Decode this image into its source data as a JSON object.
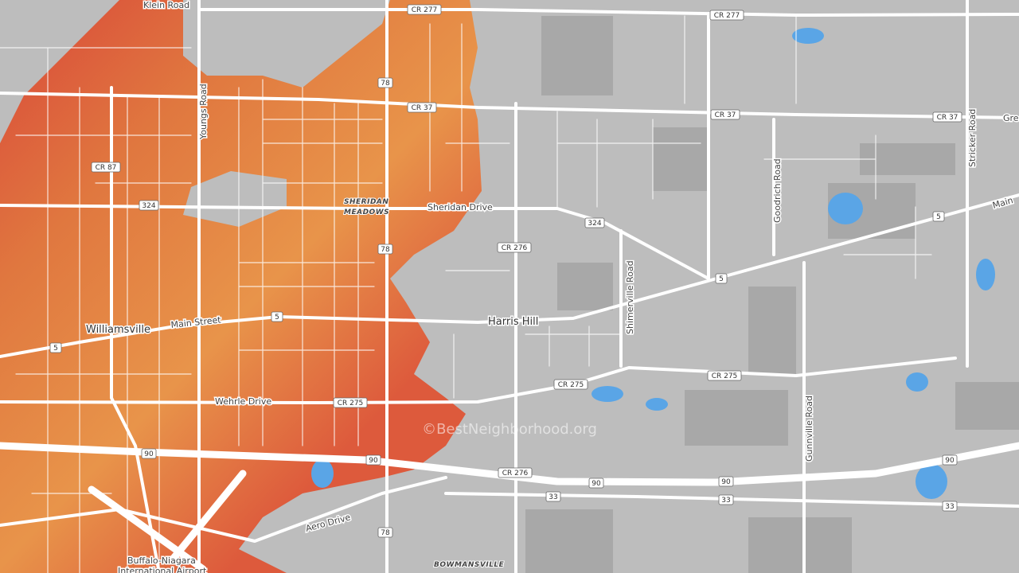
{
  "roads": {
    "klein": "Klein Road",
    "youngs": "Youngs Road",
    "sheridan": "Sheridan Drive",
    "goodrich": "Goodrich Road",
    "stricker": "Stricker Road",
    "main_east": "Main",
    "shimerville": "Shimerville Road",
    "main_street": "Main Street",
    "wehrle": "Wehrle Drive",
    "gunnville": "Gunnville Road",
    "aero": "Aero Drive",
    "greiner": "Gre"
  },
  "places": {
    "sheridan_meadows": [
      "SHERIDAN",
      "MEADOWS"
    ],
    "williamsville": "Williamsville",
    "harris_hill": "Harris Hill",
    "bowmansville": "BOWMANSVILLE",
    "airport": [
      "Buffalo-Niagara",
      "International Airport"
    ]
  },
  "shields": [
    "CR 277",
    "CR 277",
    "CR 37",
    "CR 37",
    "CR 37",
    "CR 87",
    "324",
    "324",
    "78",
    "78",
    "78",
    "CR 276",
    "CR 276",
    "5",
    "5",
    "5",
    "5",
    "CR 275",
    "CR 275",
    "CR 275",
    "90",
    "90",
    "90",
    "90",
    "90",
    "33",
    "33",
    "33"
  ],
  "watermark": "©BestNeighborhood.org"
}
